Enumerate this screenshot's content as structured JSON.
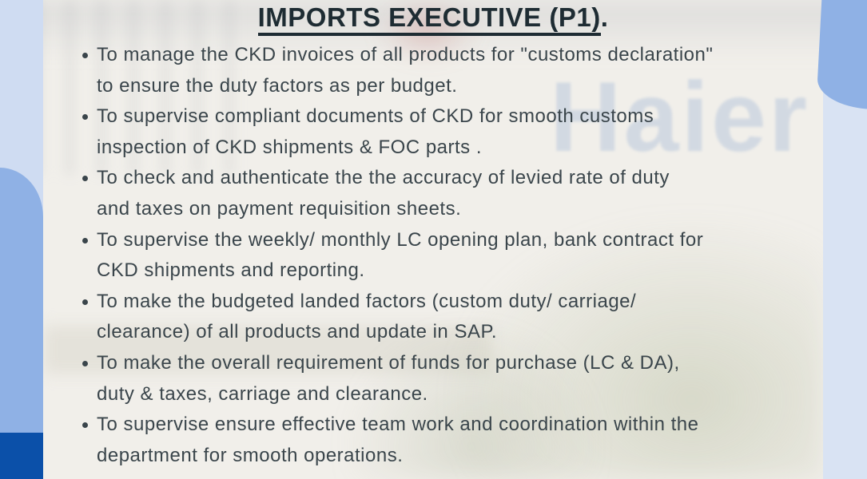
{
  "content": {
    "title": "IMPORTS EXECUTIVE (P1)",
    "title_suffix": ".",
    "watermark": "Haier",
    "bullets": [
      {
        "lines": [
          "To manage the CKD invoices of all products for \"customs declaration\"",
          "to ensure the duty factors as per budget."
        ]
      },
      {
        "lines": [
          "To supervise compliant documents of CKD for smooth customs",
          "inspection of CKD shipments & FOC parts ."
        ]
      },
      {
        "lines": [
          "To check and authenticate the the accuracy of levied rate of duty",
          "and taxes on payment requisition sheets."
        ]
      },
      {
        "lines": [
          "To supervise the weekly/ monthly LC opening plan, bank contract for",
          "CKD shipments and reporting."
        ]
      },
      {
        "lines": [
          "To make the budgeted landed factors (custom duty/ carriage/",
          "clearance) of all products and update in SAP."
        ]
      },
      {
        "lines": [
          "To make the overall requirement of funds for purchase (LC & DA),",
          "duty & taxes, carriage and clearance."
        ]
      },
      {
        "lines": [
          "To supervise ensure effective team work and coordination within the",
          "department for smooth operations."
        ]
      }
    ],
    "icons": {
      "bullet_dot": "circle"
    }
  },
  "colors": {
    "canvas_bg": "#f1efea",
    "light_blue_left": "#cfdcf2",
    "light_blue_right": "#d9e3f3",
    "medium_blue": "#8fb1e5",
    "dark_blue": "#0b50a9",
    "title": "#1e2c33",
    "body": "#3a454b",
    "watermark": "#a9bcd8"
  }
}
